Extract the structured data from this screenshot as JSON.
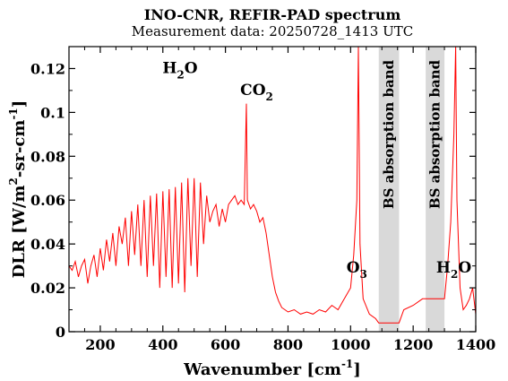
{
  "chart_data": {
    "type": "line",
    "title": "INO-CNR, REFIR-PAD spectrum",
    "subtitle": "Measurement data: 20250728_1413 UTC",
    "xlabel": {
      "main": "Wavenumber [cm",
      "sup": "-1",
      "close": "]"
    },
    "ylabel": {
      "main": "DLR [W/m",
      "sup1": "2",
      "mid": "-sr-cm",
      "sup2": "-1",
      "close": "]"
    },
    "xlim": [
      100,
      1400
    ],
    "ylim": [
      0,
      0.13
    ],
    "xticks": [
      200,
      400,
      600,
      800,
      1000,
      1200,
      1400
    ],
    "xtick_labels": [
      "200",
      "400",
      "600",
      "800",
      "1000",
      "1200",
      "1400"
    ],
    "yticks": [
      0,
      0.02,
      0.04,
      0.06,
      0.08,
      0.1,
      0.12
    ],
    "ytick_labels": [
      "0",
      "0.02",
      "0.04",
      "0.06",
      "0.08",
      "0.1",
      "0.12"
    ],
    "line_color": "#ff0000",
    "band_color": "#d9d9d9",
    "grid": false,
    "bands": [
      {
        "x_start": 1090,
        "x_end": 1155,
        "label": "BS absorption band"
      },
      {
        "x_start": 1240,
        "x_end": 1300,
        "label": "BS absorption band"
      }
    ],
    "annotations": [
      {
        "base": "H",
        "sub": "2",
        "tail": "O",
        "x": 455,
        "y": 0.118
      },
      {
        "base": "CO",
        "sub": "2",
        "tail": "",
        "x": 700,
        "y": 0.108
      },
      {
        "base": "O",
        "sub": "3",
        "tail": "",
        "x": 1020,
        "y": 0.027
      },
      {
        "base": "H",
        "sub": "2",
        "tail": "O",
        "x": 1330,
        "y": 0.027
      }
    ],
    "series": [
      {
        "x": [
          100,
          110,
          120,
          130,
          140,
          150,
          160,
          170,
          180,
          190,
          200,
          210,
          220,
          230,
          240,
          250,
          260,
          270,
          280,
          290,
          300,
          310,
          320,
          330,
          340,
          350,
          360,
          370,
          380,
          390,
          400,
          410,
          420,
          430,
          440,
          450,
          460,
          470,
          480,
          490,
          500,
          510,
          520,
          530,
          540,
          550,
          560,
          570,
          580,
          590,
          600,
          610,
          620,
          630,
          640,
          650,
          660,
          667,
          670,
          680,
          690,
          700,
          710,
          720,
          730,
          740,
          750,
          760,
          770,
          780,
          790,
          800,
          820,
          840,
          860,
          880,
          900,
          920,
          940,
          960,
          980,
          1000,
          1010,
          1020,
          1025,
          1030,
          1040,
          1060,
          1080,
          1090,
          1155,
          1170,
          1200,
          1230,
          1240,
          1300,
          1310,
          1320,
          1330,
          1336,
          1340,
          1350,
          1360,
          1370,
          1380,
          1390,
          1400
        ],
        "y": [
          0.03,
          0.028,
          0.032,
          0.025,
          0.03,
          0.033,
          0.022,
          0.03,
          0.035,
          0.025,
          0.038,
          0.028,
          0.042,
          0.032,
          0.045,
          0.03,
          0.048,
          0.04,
          0.052,
          0.03,
          0.055,
          0.035,
          0.058,
          0.03,
          0.06,
          0.025,
          0.062,
          0.03,
          0.063,
          0.02,
          0.064,
          0.025,
          0.065,
          0.02,
          0.066,
          0.022,
          0.068,
          0.018,
          0.07,
          0.03,
          0.07,
          0.025,
          0.068,
          0.04,
          0.062,
          0.05,
          0.055,
          0.058,
          0.048,
          0.056,
          0.05,
          0.058,
          0.06,
          0.062,
          0.058,
          0.06,
          0.058,
          0.104,
          0.06,
          0.056,
          0.058,
          0.055,
          0.05,
          0.052,
          0.045,
          0.035,
          0.025,
          0.018,
          0.014,
          0.011,
          0.01,
          0.009,
          0.01,
          0.008,
          0.009,
          0.008,
          0.01,
          0.009,
          0.012,
          0.01,
          0.015,
          0.02,
          0.035,
          0.06,
          0.13,
          0.04,
          0.015,
          0.008,
          0.006,
          0.004,
          0.004,
          0.01,
          0.012,
          0.015,
          0.015,
          0.015,
          0.03,
          0.05,
          0.09,
          0.13,
          0.06,
          0.02,
          0.01,
          0.012,
          0.015,
          0.02,
          0.008
        ]
      }
    ]
  }
}
